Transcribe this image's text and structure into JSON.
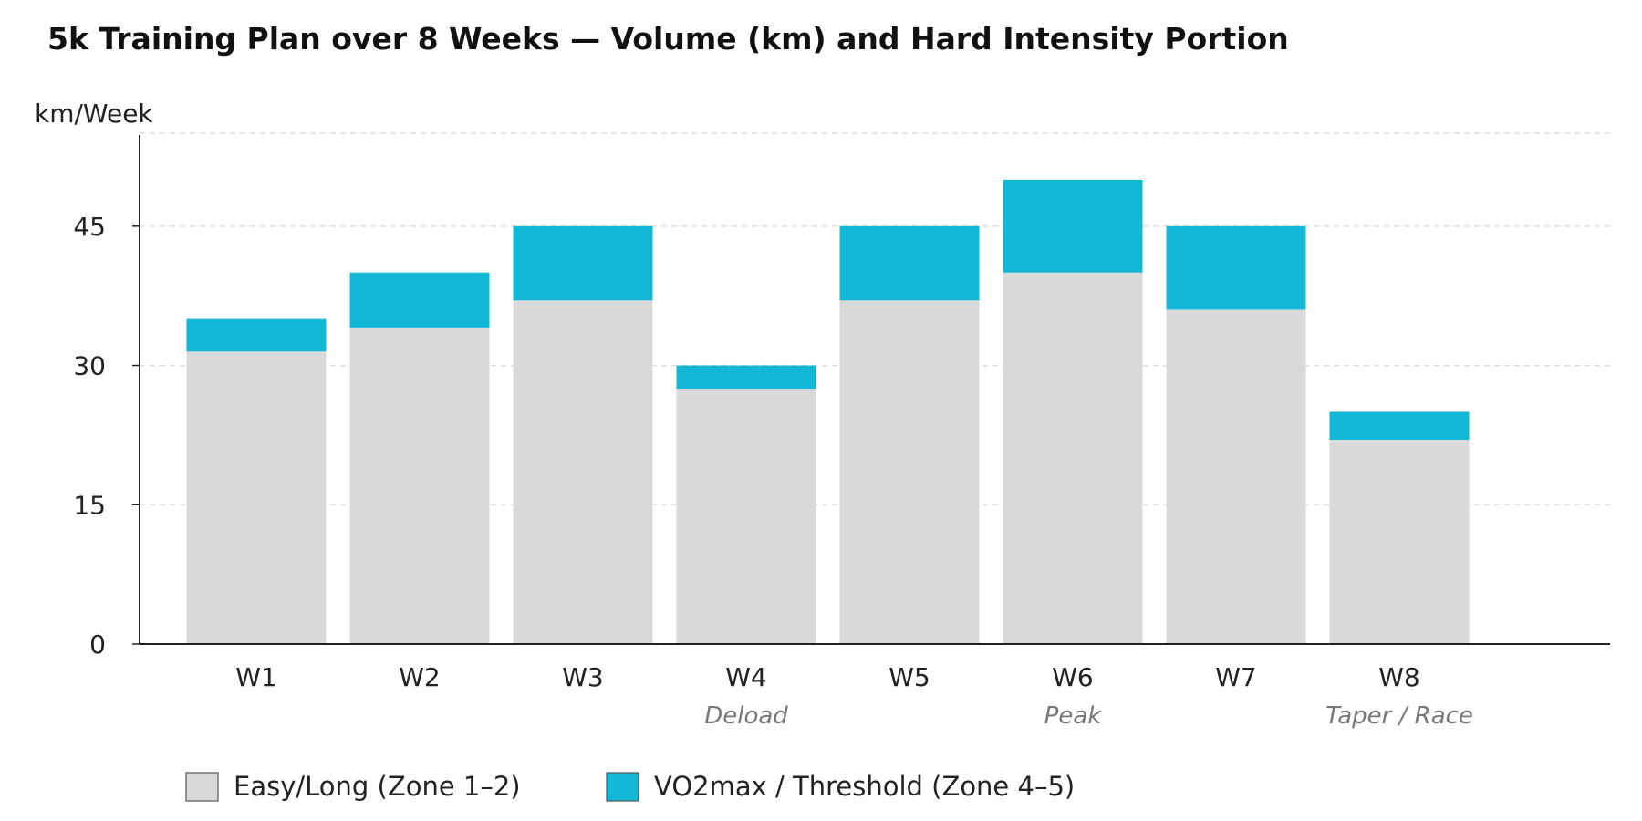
{
  "chart_data": {
    "type": "bar",
    "stacked": true,
    "title": "5k Training Plan over 8 Weeks — Volume (km) and Hard Intensity Portion",
    "xlabel": "",
    "ylabel": "km/Week",
    "ylim": [
      0,
      55
    ],
    "yticks": [
      0,
      15,
      30,
      45
    ],
    "grid": true,
    "legend_position": "bottom",
    "categories": [
      "W1",
      "W2",
      "W3",
      "W4",
      "W5",
      "W6",
      "W7",
      "W8"
    ],
    "series": [
      {
        "name": "Easy/Long (Zone 1–2)",
        "color": "#d9d9d9",
        "values": [
          31.5,
          34,
          37,
          27.5,
          37,
          40,
          36,
          22
        ]
      },
      {
        "name": "VO2max / Threshold (Zone 4–5)",
        "color": "#12b8d6",
        "values": [
          3.5,
          6,
          8,
          2.5,
          8,
          10,
          9,
          3
        ]
      }
    ],
    "annotations": [
      {
        "category": "W4",
        "text": "Deload"
      },
      {
        "category": "W6",
        "text": "Peak"
      },
      {
        "category": "W8",
        "text": "Taper / Race"
      }
    ]
  }
}
